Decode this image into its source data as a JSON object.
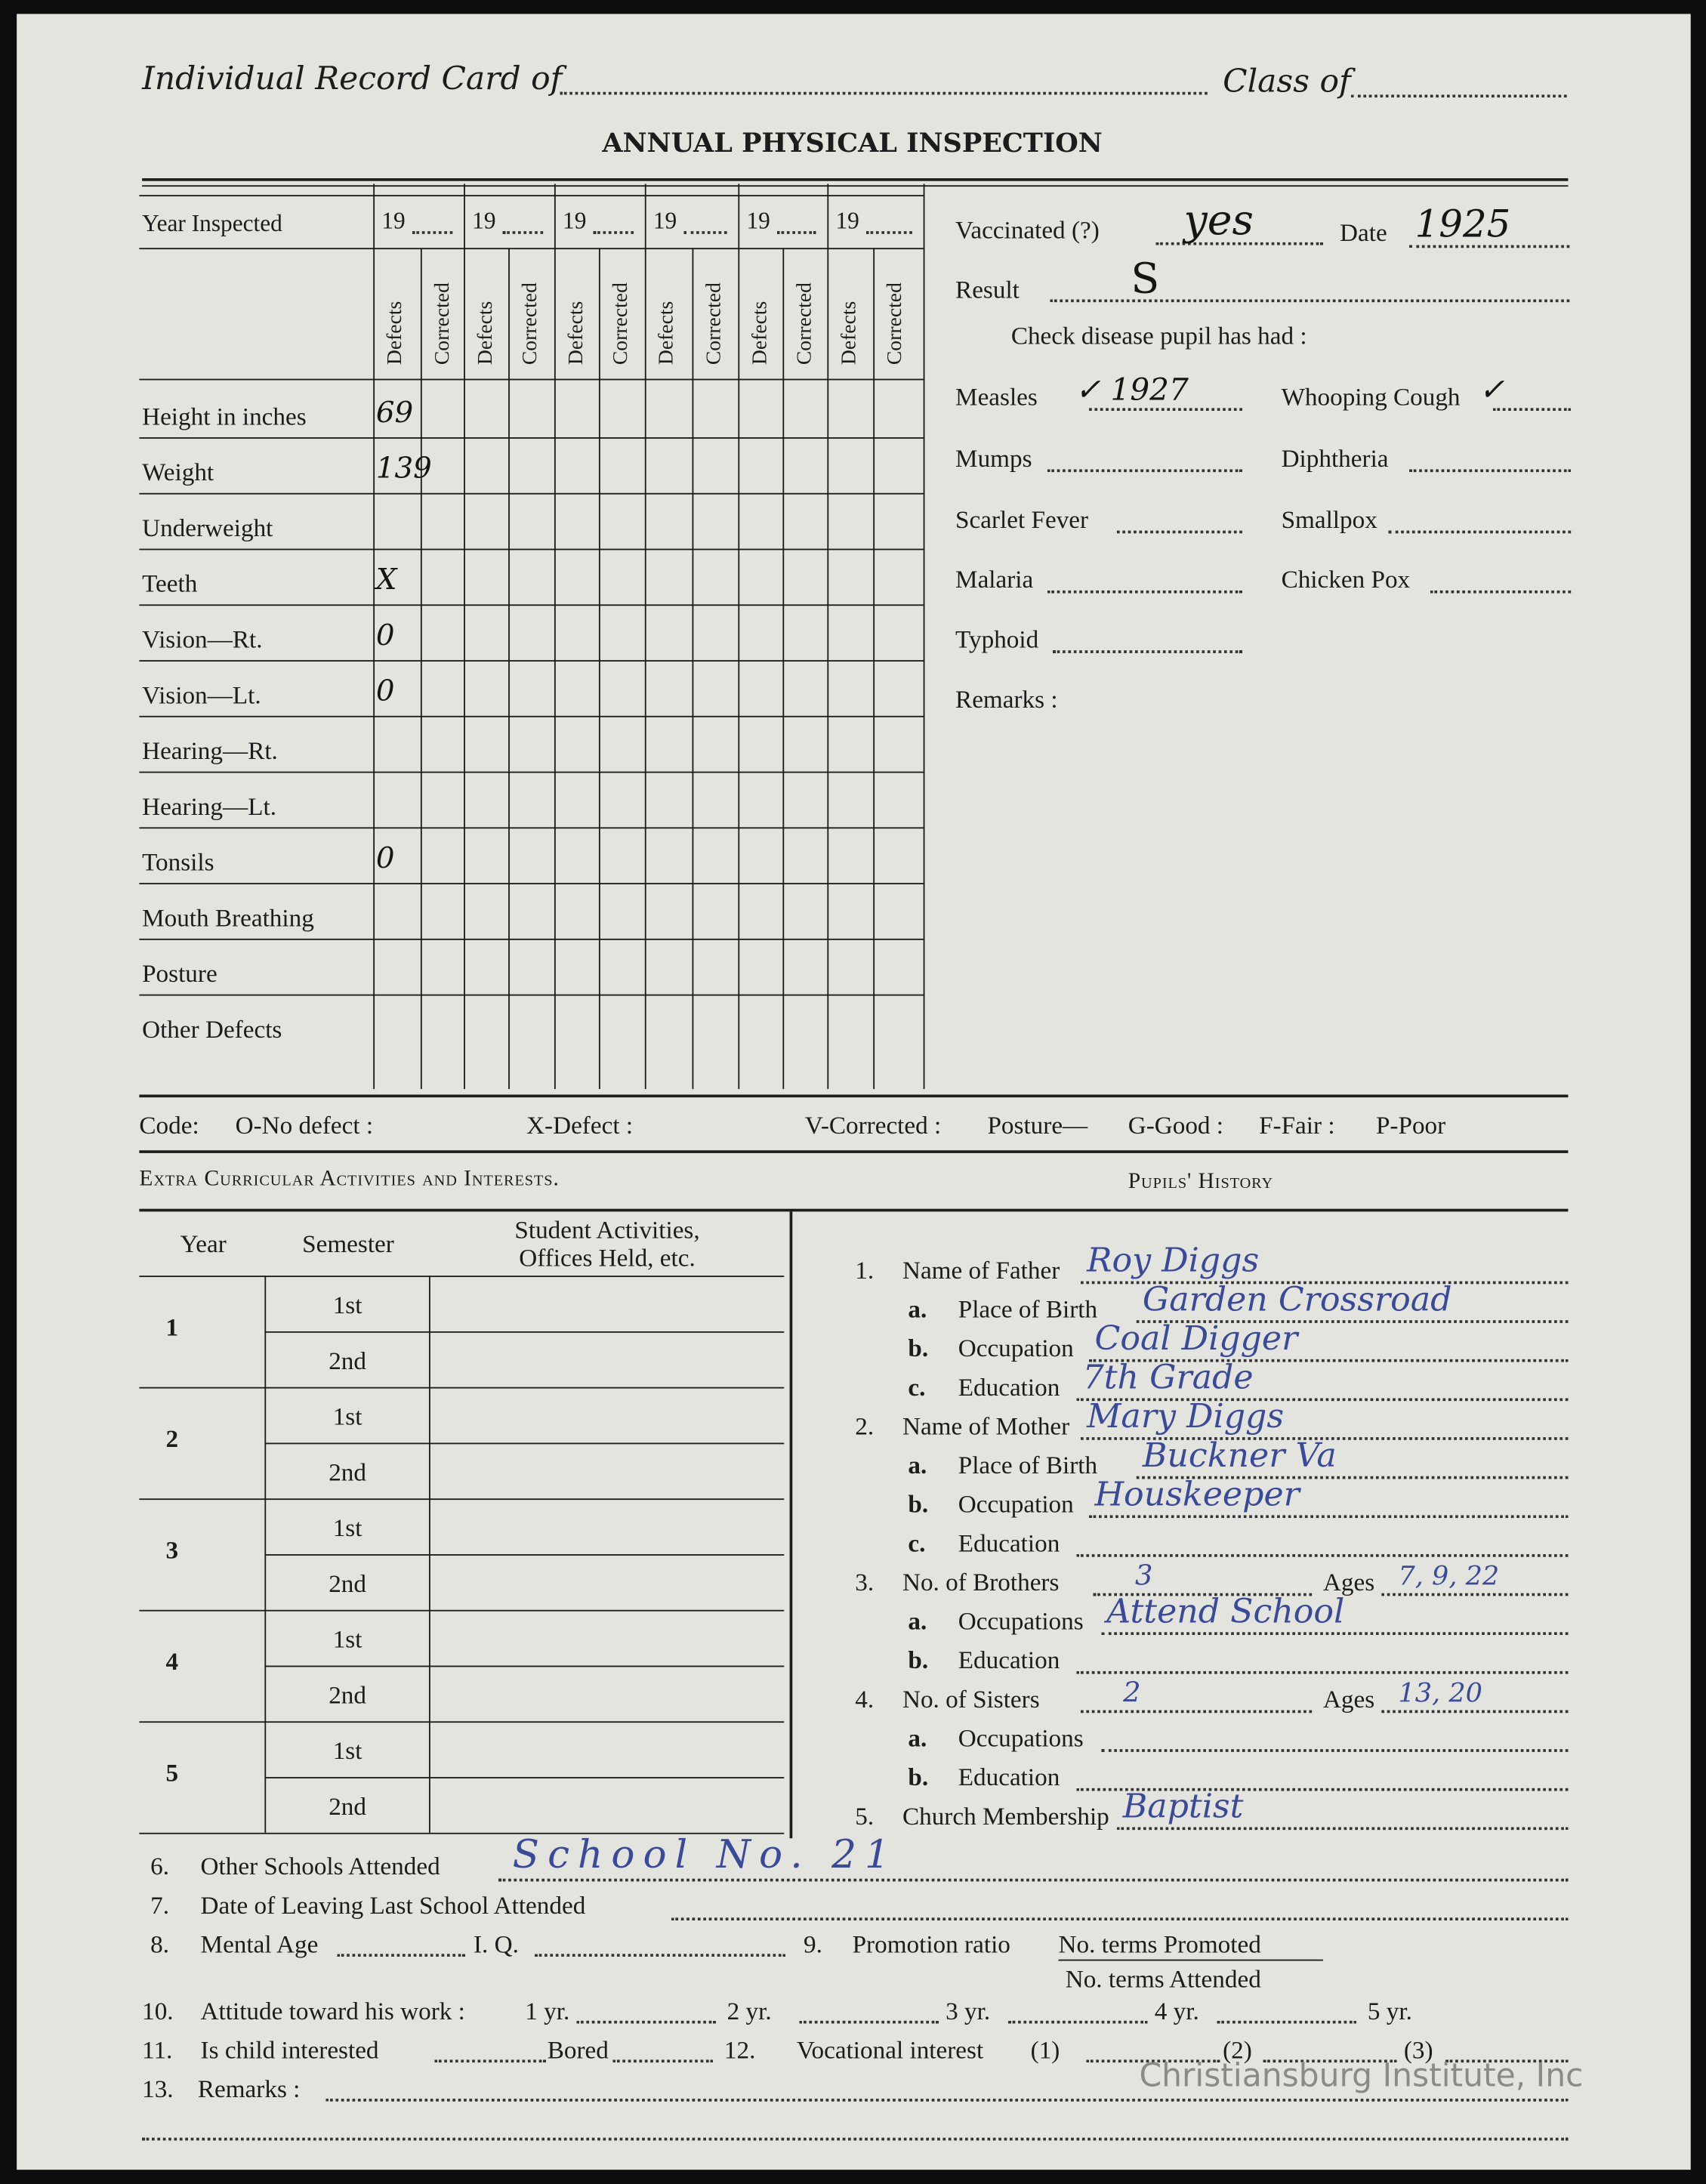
{
  "header": {
    "record_card_label": "Individual Record Card of",
    "class_label": "Class of",
    "title": "ANNUAL PHYSICAL INSPECTION"
  },
  "inspection": {
    "year_label": "Year Inspected",
    "year_prefix": "19",
    "col_defects": "Defects",
    "col_corrected": "Corrected",
    "rows": [
      {
        "label": "Height in inches",
        "value": "69"
      },
      {
        "label": "Weight",
        "value": "139"
      },
      {
        "label": "Underweight",
        "value": ""
      },
      {
        "label": "Teeth",
        "value": "X"
      },
      {
        "label": "Vision—Rt.",
        "value": "0"
      },
      {
        "label": "Vision—Lt.",
        "value": "0"
      },
      {
        "label": "Hearing—Rt.",
        "value": ""
      },
      {
        "label": "Hearing—Lt.",
        "value": ""
      },
      {
        "label": "Tonsils",
        "value": "0"
      },
      {
        "label": "Mouth Breathing",
        "value": ""
      },
      {
        "label": "Posture",
        "value": ""
      },
      {
        "label": "Other Defects",
        "value": ""
      }
    ]
  },
  "vaccination": {
    "vaccinated_label": "Vaccinated (?)",
    "vaccinated_value": "yes",
    "date_label": "Date",
    "date_value": "1925",
    "result_label": "Result",
    "result_value": "S",
    "check_label": "Check disease pupil has had :",
    "diseases": [
      {
        "label": "Measles",
        "value": "✓ 1927"
      },
      {
        "label": "Whooping Cough",
        "value": "✓"
      },
      {
        "label": "Mumps",
        "value": ""
      },
      {
        "label": "Diphtheria",
        "value": ""
      },
      {
        "label": "Scarlet Fever",
        "value": ""
      },
      {
        "label": "Smallpox",
        "value": ""
      },
      {
        "label": "Malaria",
        "value": ""
      },
      {
        "label": "Chicken Pox",
        "value": ""
      },
      {
        "label": "Typhoid",
        "value": ""
      }
    ],
    "remarks_label": "Remarks :"
  },
  "code": {
    "label": "Code:",
    "o": "O-No defect :",
    "x": "X-Defect :",
    "v": "V-Corrected :",
    "posture": "Posture—",
    "g": "G-Good :",
    "f": "F-Fair :",
    "p": "P-Poor"
  },
  "activities": {
    "title": "Extra Curricular Activities and Interests.",
    "col_year": "Year",
    "col_semester": "Semester",
    "col_activities_1": "Student Activities,",
    "col_activities_2": "Offices Held, etc.",
    "years": [
      "1",
      "2",
      "3",
      "4",
      "5"
    ],
    "semesters": [
      "1st",
      "2nd"
    ]
  },
  "history": {
    "title": "Pupils' History",
    "items": [
      {
        "num": "1.",
        "label": "Name of Father",
        "value": "Roy Diggs",
        "indent": false
      },
      {
        "num": "a.",
        "label": "Place of Birth",
        "value": "Garden Crossroad",
        "indent": true
      },
      {
        "num": "b.",
        "label": "Occupation",
        "value": "Coal Digger",
        "indent": true
      },
      {
        "num": "c.",
        "label": "Education",
        "value": "7th Grade",
        "indent": true
      },
      {
        "num": "2.",
        "label": "Name of Mother",
        "value": "Mary Diggs",
        "indent": false
      },
      {
        "num": "a.",
        "label": "Place of Birth",
        "value": "Buckner Va",
        "indent": true
      },
      {
        "num": "b.",
        "label": "Occupation",
        "value": "Houskeeper",
        "indent": true
      },
      {
        "num": "c.",
        "label": "Education",
        "value": "",
        "indent": true
      },
      {
        "num": "3.",
        "label": "No. of Brothers",
        "value": "3",
        "ages_label": "Ages",
        "ages": "7, 9, 22",
        "indent": false
      },
      {
        "num": "a.",
        "label": "Occupations",
        "value": "Attend School",
        "indent": true
      },
      {
        "num": "b.",
        "label": "Education",
        "value": "",
        "indent": true
      },
      {
        "num": "4.",
        "label": "No. of Sisters",
        "value": "2",
        "ages_label": "Ages",
        "ages": "13, 20",
        "indent": false
      },
      {
        "num": "a.",
        "label": "Occupations",
        "value": "",
        "indent": true
      },
      {
        "num": "b.",
        "label": "Education",
        "value": "",
        "indent": true
      },
      {
        "num": "5.",
        "label": "Church Membership",
        "value": "Baptist",
        "indent": false
      }
    ]
  },
  "bottom": {
    "i6_num": "6.",
    "i6": "Other Schools Attended",
    "i6_value": "School No. 21",
    "i7_num": "7.",
    "i7": "Date of Leaving Last School Attended",
    "i8_num": "8.",
    "i8": "Mental Age",
    "iq": "I. Q.",
    "i9_num": "9.",
    "i9": "Promotion ratio",
    "i9_num_text": "No. terms Promoted",
    "i9_den_text": "No. terms Attended",
    "i10_num": "10.",
    "i10": "Attitude toward his work :",
    "yrs": [
      "1 yr.",
      "2 yr.",
      "3 yr.",
      "4 yr.",
      "5 yr."
    ],
    "i11_num": "11.",
    "i11": "Is child interested",
    "bored": "Bored",
    "i12_num": "12.",
    "i12": "Vocational interest",
    "v1": "(1)",
    "v2": "(2)",
    "v3": "(3)",
    "i13_num": "13.",
    "i13": "Remarks :"
  },
  "watermark": "Christiansburg Institute, Inc"
}
